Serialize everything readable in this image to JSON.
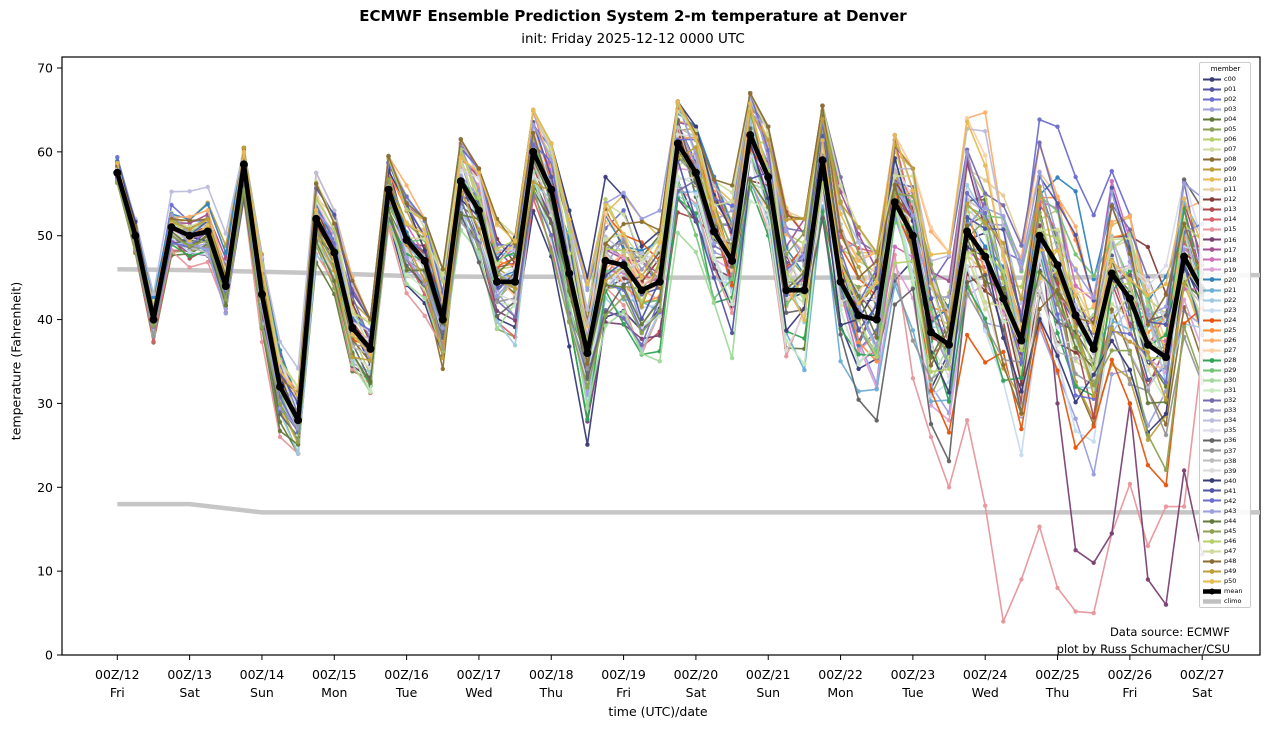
{
  "title": "ECMWF Ensemble Prediction System 2-m temperature at Denver",
  "subtitle": "init: Friday 2025-12-12 0000 UTC",
  "annotation": {
    "line1": "Data source: ECMWF",
    "line2": "plot by Russ Schumacher/CSU"
  },
  "axes": {
    "ylabel": "temperature (Fahrenheit)",
    "xlabel": "time (UTC)/date",
    "yticks": [
      0,
      10,
      20,
      30,
      40,
      50,
      60,
      70
    ],
    "xticks": [
      {
        "l1": "00Z/12",
        "l2": "Fri"
      },
      {
        "l1": "00Z/13",
        "l2": "Sat"
      },
      {
        "l1": "00Z/14",
        "l2": "Sun"
      },
      {
        "l1": "00Z/15",
        "l2": "Mon"
      },
      {
        "l1": "00Z/16",
        "l2": "Tue"
      },
      {
        "l1": "00Z/17",
        "l2": "Wed"
      },
      {
        "l1": "00Z/18",
        "l2": "Thu"
      },
      {
        "l1": "00Z/19",
        "l2": "Fri"
      },
      {
        "l1": "00Z/20",
        "l2": "Sat"
      },
      {
        "l1": "00Z/21",
        "l2": "Sun"
      },
      {
        "l1": "00Z/22",
        "l2": "Mon"
      },
      {
        "l1": "00Z/23",
        "l2": "Tue"
      },
      {
        "l1": "00Z/24",
        "l2": "Wed"
      },
      {
        "l1": "00Z/25",
        "l2": "Thu"
      },
      {
        "l1": "00Z/26",
        "l2": "Fri"
      },
      {
        "l1": "00Z/27",
        "l2": "Sat"
      }
    ]
  },
  "legend": {
    "title": "member",
    "entries": [
      {
        "name": "c00",
        "color": "#393b79",
        "type": "member"
      },
      {
        "name": "p01",
        "color": "#5254a3",
        "type": "member"
      },
      {
        "name": "p02",
        "color": "#6b6ecf",
        "type": "member"
      },
      {
        "name": "p03",
        "color": "#9c9ede",
        "type": "member"
      },
      {
        "name": "p04",
        "color": "#637939",
        "type": "member"
      },
      {
        "name": "p05",
        "color": "#8ca252",
        "type": "member"
      },
      {
        "name": "p06",
        "color": "#b5cf6b",
        "type": "member"
      },
      {
        "name": "p07",
        "color": "#cedb9c",
        "type": "member"
      },
      {
        "name": "p08",
        "color": "#8c6d31",
        "type": "member"
      },
      {
        "name": "p09",
        "color": "#bd9e39",
        "type": "member"
      },
      {
        "name": "p10",
        "color": "#e7ba52",
        "type": "member"
      },
      {
        "name": "p11",
        "color": "#e7cb94",
        "type": "member"
      },
      {
        "name": "p12",
        "color": "#843c39",
        "type": "member"
      },
      {
        "name": "p13",
        "color": "#ad494a",
        "type": "member"
      },
      {
        "name": "p14",
        "color": "#d6616b",
        "type": "member"
      },
      {
        "name": "p15",
        "color": "#e7969c",
        "type": "member"
      },
      {
        "name": "p16",
        "color": "#7b4173",
        "type": "member"
      },
      {
        "name": "p17",
        "color": "#a55194",
        "type": "member"
      },
      {
        "name": "p18",
        "color": "#ce6dbd",
        "type": "member"
      },
      {
        "name": "p19",
        "color": "#de9ed6",
        "type": "member"
      },
      {
        "name": "p20",
        "color": "#3182bd",
        "type": "member"
      },
      {
        "name": "p21",
        "color": "#6baed6",
        "type": "member"
      },
      {
        "name": "p22",
        "color": "#9ecae1",
        "type": "member"
      },
      {
        "name": "p23",
        "color": "#c6dbef",
        "type": "member"
      },
      {
        "name": "p24",
        "color": "#e6550d",
        "type": "member"
      },
      {
        "name": "p25",
        "color": "#fd8d3c",
        "type": "member"
      },
      {
        "name": "p26",
        "color": "#fdae6b",
        "type": "member"
      },
      {
        "name": "p27",
        "color": "#fdd0a2",
        "type": "member"
      },
      {
        "name": "p28",
        "color": "#31a354",
        "type": "member"
      },
      {
        "name": "p29",
        "color": "#74c476",
        "type": "member"
      },
      {
        "name": "p30",
        "color": "#a1d99b",
        "type": "member"
      },
      {
        "name": "p31",
        "color": "#c7e9c0",
        "type": "member"
      },
      {
        "name": "p32",
        "color": "#756bb1",
        "type": "member"
      },
      {
        "name": "p33",
        "color": "#9e9ac8",
        "type": "member"
      },
      {
        "name": "p34",
        "color": "#bcbddc",
        "type": "member"
      },
      {
        "name": "p35",
        "color": "#dadaeb",
        "type": "member"
      },
      {
        "name": "p36",
        "color": "#636363",
        "type": "member"
      },
      {
        "name": "p37",
        "color": "#969696",
        "type": "member"
      },
      {
        "name": "p38",
        "color": "#bdbdbd",
        "type": "member"
      },
      {
        "name": "p39",
        "color": "#d9d9d9",
        "type": "member"
      },
      {
        "name": "p40",
        "color": "#393b79",
        "type": "member"
      },
      {
        "name": "p41",
        "color": "#5254a3",
        "type": "member"
      },
      {
        "name": "p42",
        "color": "#6b6ecf",
        "type": "member"
      },
      {
        "name": "p43",
        "color": "#9c9ede",
        "type": "member"
      },
      {
        "name": "p44",
        "color": "#637939",
        "type": "member"
      },
      {
        "name": "p45",
        "color": "#8ca252",
        "type": "member"
      },
      {
        "name": "p46",
        "color": "#b5cf6b",
        "type": "member"
      },
      {
        "name": "p47",
        "color": "#cedb9c",
        "type": "member"
      },
      {
        "name": "p48",
        "color": "#8c6d31",
        "type": "member"
      },
      {
        "name": "p49",
        "color": "#bd9e39",
        "type": "member"
      },
      {
        "name": "p50",
        "color": "#e7ba52",
        "type": "member"
      },
      {
        "name": "mean",
        "color": "#000000",
        "type": "mean"
      },
      {
        "name": "climo",
        "color": "#c0c0c0",
        "type": "climo"
      }
    ]
  },
  "chart_data": {
    "type": "line",
    "time_step_hours": 6,
    "start": "00Z Fri 2025-12-12",
    "end": "00Z Sat 2025-12-27",
    "n_points": 61,
    "ylim": [
      0,
      71.3
    ],
    "legend_position": "upper right",
    "grid": false,
    "mean": [
      57.5,
      50,
      40,
      51,
      50,
      50.5,
      44,
      58.5,
      43,
      32,
      28,
      52,
      48,
      39,
      36.5,
      55.5,
      49.5,
      47,
      40,
      56.5,
      53,
      44.5,
      44.5,
      60,
      55.5,
      45.5,
      36,
      47,
      46.5,
      43.5,
      44.5,
      61,
      57.5,
      50.5,
      47,
      62,
      57,
      43.5,
      43.5,
      59,
      44.5,
      40.5,
      40,
      54,
      50,
      38.5,
      37,
      50.5,
      47.5,
      42.5,
      37.5,
      50,
      46.5,
      40.5,
      36.5,
      45.5,
      42.5,
      37,
      35.5,
      47.5,
      43.5
    ],
    "climo_upper_daily": [
      46,
      45.9,
      45.7,
      45.5,
      45.2,
      45.1,
      45.1,
      45,
      45,
      45,
      45,
      45,
      45,
      45,
      45.1,
      45.3
    ],
    "climo_lower_daily": [
      18,
      18,
      17,
      17,
      17,
      17,
      17,
      17,
      17,
      17,
      17,
      17,
      17,
      17,
      17,
      17
    ],
    "ensemble_envelope_hi": [
      60.5,
      55,
      46,
      56,
      56,
      57.5,
      52,
      60.5,
      51,
      44,
      38,
      57.5,
      53,
      45,
      40,
      59.5,
      56,
      52,
      46,
      61.5,
      58,
      52,
      50,
      65,
      61,
      53,
      45,
      57,
      59,
      52,
      53,
      66,
      63,
      60,
      56,
      67,
      63,
      55,
      52,
      65.5,
      57,
      51,
      48,
      62,
      58,
      51,
      48,
      64,
      65,
      57,
      52,
      66,
      63,
      57,
      54,
      64,
      62,
      58,
      55,
      63,
      63.5
    ],
    "ensemble_envelope_lo": [
      53,
      45,
      35,
      42,
      38,
      40,
      33,
      50,
      36,
      26,
      24,
      40,
      36,
      33,
      28,
      45,
      40,
      36,
      33,
      47,
      43,
      34,
      34,
      50,
      44,
      34,
      21.5,
      34,
      33,
      30,
      27,
      50,
      44,
      42,
      34,
      53,
      44,
      31,
      28,
      42,
      33,
      27,
      21,
      33,
      30,
      24,
      20,
      32,
      26,
      18,
      15,
      28,
      20,
      12,
      8,
      15,
      12,
      8,
      6,
      12,
      22
    ],
    "member_overrides": {
      "p15": {
        "44": 33,
        "45": 26,
        "46": 20,
        "47": 28,
        "48": 17.8,
        "49": 4,
        "50": 9,
        "51": 15.3,
        "52": 8,
        "53": 5.2,
        "54": 5,
        "55": 14.5,
        "56": 20.4,
        "57": 13,
        "58": 17.7,
        "59": 17.7,
        "60": 36
      },
      "p16": {
        "52": 30,
        "53": 12.5,
        "54": 11,
        "55": 14.5,
        "56": 30,
        "57": 9,
        "58": 6,
        "59": 22,
        "60": 12
      }
    }
  }
}
